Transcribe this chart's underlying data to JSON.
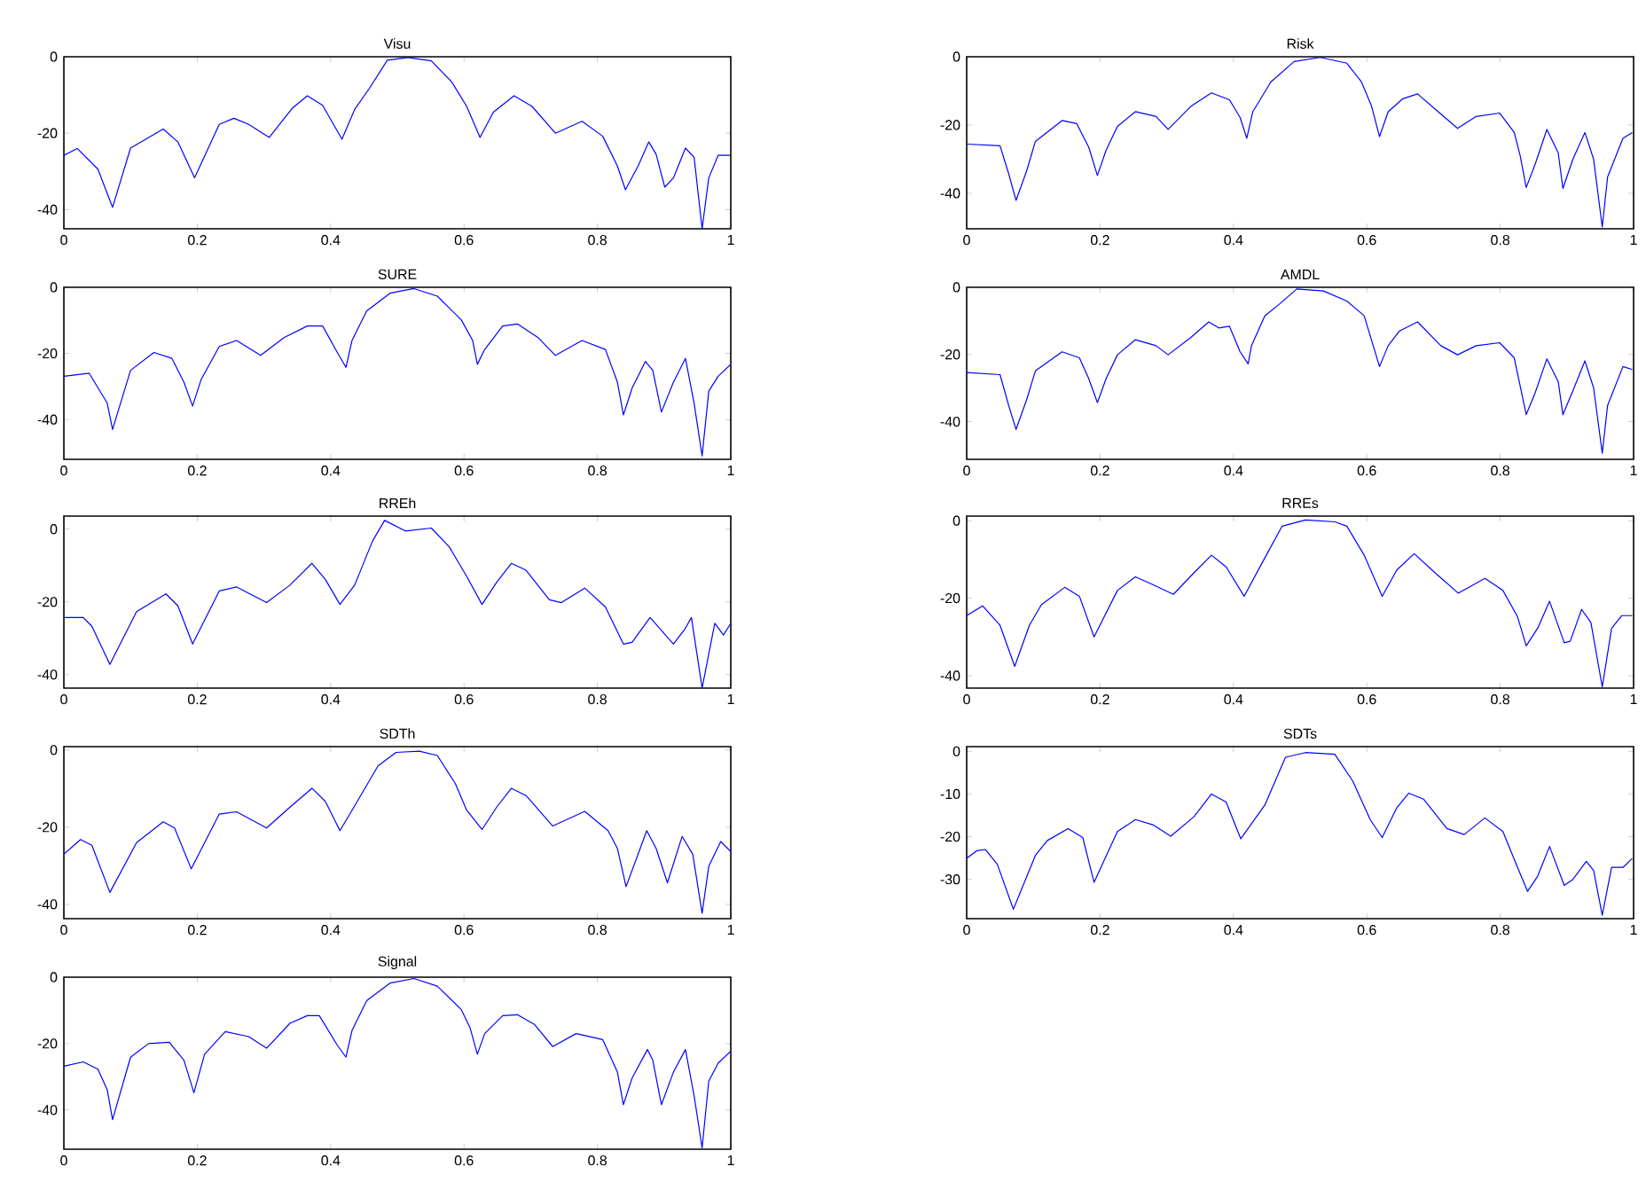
{
  "chart_data": [
    {
      "type": "line",
      "title": "Visu",
      "color": "#0000ff",
      "xlim": [
        0,
        1
      ],
      "xticks": [
        0,
        0.2,
        0.4,
        0.6,
        0.8,
        1
      ],
      "ylim": [
        -45,
        0
      ],
      "yticks": [
        -40,
        -20,
        0
      ],
      "x": [
        0,
        0.02,
        0.051,
        0.073,
        0.1,
        0.149,
        0.171,
        0.196,
        0.233,
        0.255,
        0.277,
        0.308,
        0.343,
        0.365,
        0.388,
        0.417,
        0.436,
        0.458,
        0.485,
        0.516,
        0.551,
        0.582,
        0.604,
        0.624,
        0.644,
        0.675,
        0.702,
        0.737,
        0.777,
        0.808,
        0.83,
        0.842,
        0.861,
        0.877,
        0.888,
        0.901,
        0.914,
        0.932,
        0.945,
        0.957,
        0.967,
        0.981,
        1
      ],
      "values": [
        -25.8,
        -24,
        -29.4,
        -39.4,
        -23.9,
        -18.9,
        -22.3,
        -31.7,
        -17.7,
        -16.1,
        -17.7,
        -21.1,
        -13.4,
        -10.2,
        -12.7,
        -21.6,
        -13.8,
        -8.3,
        -0.9,
        -0.2,
        -1.1,
        -6.7,
        -13,
        -21.1,
        -14.5,
        -10.2,
        -13,
        -20,
        -16.9,
        -20.8,
        -28.6,
        -34.8,
        -28.6,
        -22.3,
        -25.5,
        -34.1,
        -31.7,
        -23.9,
        -26.3,
        -45,
        -31.7,
        -25.8,
        -25.8
      ]
    },
    {
      "type": "line",
      "title": "Risk",
      "color": "#0000ff",
      "xlim": [
        0,
        1
      ],
      "xticks": [
        0,
        0.2,
        0.4,
        0.6,
        0.8,
        1
      ],
      "ylim": [
        -50.4,
        0
      ],
      "yticks": [
        -40,
        -20,
        0
      ],
      "x": [
        0,
        0.05,
        0.063,
        0.074,
        0.09,
        0.103,
        0.143,
        0.165,
        0.183,
        0.196,
        0.209,
        0.226,
        0.253,
        0.284,
        0.302,
        0.337,
        0.367,
        0.394,
        0.41,
        0.42,
        0.429,
        0.456,
        0.491,
        0.53,
        0.57,
        0.592,
        0.607,
        0.619,
        0.632,
        0.654,
        0.676,
        0.707,
        0.736,
        0.764,
        0.799,
        0.821,
        0.83,
        0.839,
        0.852,
        0.87,
        0.887,
        0.894,
        0.909,
        0.927,
        0.94,
        0.953,
        0.961,
        0.984,
        0.998
      ],
      "values": [
        -25.6,
        -26.1,
        -34.3,
        -42.1,
        -33.4,
        -24.8,
        -18.7,
        -19.6,
        -26.5,
        -34.8,
        -27.4,
        -20.4,
        -16.1,
        -17.5,
        -21.3,
        -14.4,
        -10.6,
        -12.6,
        -17.8,
        -23.9,
        -16.1,
        -7.4,
        -1.4,
        -0.2,
        -1.9,
        -7.4,
        -14.4,
        -23.4,
        -16.1,
        -12.3,
        -10.9,
        -16.1,
        -21,
        -17.5,
        -16.5,
        -22.2,
        -29.1,
        -38.3,
        -31.7,
        -21.3,
        -28.2,
        -38.6,
        -30,
        -22.2,
        -30,
        -49.9,
        -35.2,
        -23.9,
        -22.2
      ]
    },
    {
      "type": "line",
      "title": "SURE",
      "color": "#0000ff",
      "xlim": [
        0,
        1
      ],
      "xticks": [
        0,
        0.2,
        0.4,
        0.6,
        0.8,
        1
      ],
      "ylim": [
        -52,
        0
      ],
      "yticks": [
        -40,
        -20,
        0
      ],
      "x": [
        0,
        0.038,
        0.065,
        0.073,
        0.1,
        0.135,
        0.162,
        0.18,
        0.193,
        0.206,
        0.233,
        0.259,
        0.295,
        0.33,
        0.365,
        0.388,
        0.41,
        0.423,
        0.432,
        0.454,
        0.489,
        0.525,
        0.56,
        0.596,
        0.613,
        0.62,
        0.631,
        0.658,
        0.68,
        0.711,
        0.737,
        0.777,
        0.812,
        0.83,
        0.839,
        0.852,
        0.872,
        0.883,
        0.896,
        0.914,
        0.932,
        0.945,
        0.957,
        0.967,
        0.981,
        1
      ],
      "values": [
        -26.9,
        -26,
        -35,
        -43,
        -25.1,
        -19.7,
        -21.5,
        -28.7,
        -35.9,
        -27.8,
        -17.9,
        -16.1,
        -20.6,
        -15.2,
        -11.7,
        -11.7,
        -19.7,
        -24.2,
        -16.1,
        -7.2,
        -1.8,
        -0.4,
        -2.7,
        -9.9,
        -16.1,
        -23.3,
        -18.8,
        -11.7,
        -11.1,
        -15.2,
        -20.6,
        -16.1,
        -18.8,
        -28.7,
        -38.6,
        -30.5,
        -22.4,
        -25.1,
        -37.7,
        -28.7,
        -21.5,
        -35,
        -51,
        -31.4,
        -26.9,
        -23.3
      ]
    },
    {
      "type": "line",
      "title": "AMDL",
      "color": "#0000ff",
      "xlim": [
        0,
        1
      ],
      "xticks": [
        0,
        0.2,
        0.4,
        0.6,
        0.8,
        1
      ],
      "ylim": [
        -51.2,
        0
      ],
      "yticks": [
        -40,
        -20,
        0
      ],
      "x": [
        0,
        0.05,
        0.063,
        0.074,
        0.09,
        0.103,
        0.143,
        0.169,
        0.183,
        0.196,
        0.209,
        0.226,
        0.253,
        0.284,
        0.302,
        0.337,
        0.363,
        0.378,
        0.394,
        0.41,
        0.422,
        0.427,
        0.447,
        0.469,
        0.495,
        0.535,
        0.57,
        0.596,
        0.619,
        0.632,
        0.649,
        0.676,
        0.711,
        0.736,
        0.764,
        0.799,
        0.821,
        0.839,
        0.852,
        0.87,
        0.887,
        0.894,
        0.909,
        0.927,
        0.94,
        0.953,
        0.961,
        0.984,
        0.998
      ],
      "values": [
        -25.4,
        -26,
        -35.2,
        -42.3,
        -33.4,
        -24.9,
        -19.2,
        -21,
        -27.2,
        -34.3,
        -27.2,
        -20.1,
        -15.6,
        -17.4,
        -20.1,
        -14.8,
        -10.3,
        -12.1,
        -11.6,
        -19.2,
        -22.8,
        -17.4,
        -8.5,
        -5,
        -0.5,
        -1.1,
        -4.1,
        -8.5,
        -23.6,
        -17.4,
        -13,
        -10.3,
        -17.4,
        -20.1,
        -17.4,
        -16.5,
        -21,
        -37.9,
        -31.6,
        -21.3,
        -28.1,
        -37.9,
        -30.8,
        -21.9,
        -29.9,
        -49.4,
        -35.2,
        -23.6,
        -24.5
      ]
    },
    {
      "type": "line",
      "title": "RREh",
      "color": "#0000ff",
      "xlim": [
        0,
        1
      ],
      "xticks": [
        0,
        0.2,
        0.4,
        0.6,
        0.8,
        1
      ],
      "ylim": [
        -43.7,
        3.6
      ],
      "yticks": [
        -40,
        -20,
        0
      ],
      "x": [
        0,
        0.029,
        0.042,
        0.069,
        0.109,
        0.153,
        0.171,
        0.193,
        0.233,
        0.259,
        0.304,
        0.339,
        0.372,
        0.392,
        0.414,
        0.436,
        0.463,
        0.481,
        0.512,
        0.551,
        0.578,
        0.604,
        0.627,
        0.649,
        0.671,
        0.693,
        0.728,
        0.746,
        0.781,
        0.812,
        0.839,
        0.852,
        0.879,
        0.914,
        0.931,
        0.941,
        0.957,
        0.976,
        0.989,
        1
      ],
      "values": [
        -24.3,
        -24.3,
        -26.7,
        -37.2,
        -22.7,
        -17.8,
        -21.1,
        -31.6,
        -17,
        -15.9,
        -20.2,
        -15.4,
        -9.4,
        -13.8,
        -20.7,
        -15.4,
        -3.2,
        2.4,
        -0.5,
        0.3,
        -4.9,
        -13,
        -20.7,
        -14.6,
        -9.4,
        -11.3,
        -19.4,
        -20.2,
        -16.2,
        -21.4,
        -31.6,
        -31.1,
        -24.3,
        -31.6,
        -27.5,
        -24.3,
        -43.7,
        -25.9,
        -29.1,
        -25.9
      ]
    },
    {
      "type": "line",
      "title": "RREs",
      "color": "#0000ff",
      "xlim": [
        0,
        1
      ],
      "xticks": [
        0,
        0.2,
        0.4,
        0.6,
        0.8,
        1
      ],
      "ylim": [
        -43.2,
        1.2
      ],
      "yticks": [
        -40,
        -20,
        0
      ],
      "x": [
        0,
        0.024,
        0.05,
        0.072,
        0.094,
        0.112,
        0.147,
        0.169,
        0.191,
        0.226,
        0.253,
        0.279,
        0.31,
        0.341,
        0.367,
        0.389,
        0.416,
        0.442,
        0.473,
        0.508,
        0.552,
        0.57,
        0.596,
        0.623,
        0.645,
        0.671,
        0.702,
        0.737,
        0.777,
        0.804,
        0.826,
        0.839,
        0.856,
        0.874,
        0.896,
        0.905,
        0.922,
        0.936,
        0.953,
        0.967,
        0.982,
        0.998
      ],
      "values": [
        -24.5,
        -22,
        -27,
        -37.6,
        -27,
        -21.7,
        -17.2,
        -19.5,
        -30,
        -18,
        -14.5,
        -16.5,
        -19,
        -13.4,
        -8.9,
        -11.9,
        -19.5,
        -11.2,
        -1.4,
        0.2,
        -0.3,
        -1.4,
        -8.9,
        -19.5,
        -12.7,
        -8.5,
        -13.4,
        -18.7,
        -14.9,
        -18,
        -24.8,
        -32.3,
        -27.8,
        -20.8,
        -31.5,
        -31.1,
        -22.9,
        -26.3,
        -42.9,
        -27.8,
        -24.5,
        -24.5
      ]
    },
    {
      "type": "line",
      "title": "SDTh",
      "color": "#0000ff",
      "xlim": [
        0,
        1
      ],
      "xticks": [
        0,
        0.2,
        0.4,
        0.6,
        0.8,
        1
      ],
      "ylim": [
        -43.7,
        0.9
      ],
      "yticks": [
        -40,
        -20,
        0
      ],
      "x": [
        0,
        0.025,
        0.042,
        0.069,
        0.109,
        0.149,
        0.166,
        0.191,
        0.233,
        0.259,
        0.304,
        0.339,
        0.372,
        0.392,
        0.414,
        0.445,
        0.471,
        0.498,
        0.533,
        0.56,
        0.587,
        0.604,
        0.627,
        0.649,
        0.671,
        0.693,
        0.733,
        0.781,
        0.816,
        0.83,
        0.843,
        0.861,
        0.874,
        0.888,
        0.905,
        0.927,
        0.943,
        0.957,
        0.967,
        0.985,
        1
      ],
      "values": [
        -27,
        -23.2,
        -24.7,
        -36.9,
        -24,
        -18.6,
        -20.2,
        -30.8,
        -16.6,
        -16,
        -20.2,
        -14.8,
        -9.9,
        -13.3,
        -20.9,
        -11.8,
        -4.1,
        -0.6,
        -0.3,
        -1.4,
        -8.7,
        -15.6,
        -20.6,
        -14.8,
        -9.9,
        -11.8,
        -19.7,
        -15.9,
        -20.9,
        -25.5,
        -35.4,
        -27,
        -20.9,
        -25.5,
        -34.4,
        -22.4,
        -27,
        -42.3,
        -30.1,
        -23.7,
        -26.3
      ]
    },
    {
      "type": "line",
      "title": "SDTs",
      "color": "#0000ff",
      "xlim": [
        0,
        1
      ],
      "xticks": [
        0,
        0.2,
        0.4,
        0.6,
        0.8,
        1
      ],
      "ylim": [
        -39.2,
        1.1
      ],
      "yticks": [
        -30,
        -20,
        -10,
        0
      ],
      "x": [
        0,
        0.015,
        0.028,
        0.046,
        0.07,
        0.103,
        0.121,
        0.152,
        0.174,
        0.191,
        0.226,
        0.253,
        0.279,
        0.306,
        0.341,
        0.367,
        0.389,
        0.411,
        0.447,
        0.478,
        0.508,
        0.552,
        0.579,
        0.605,
        0.623,
        0.645,
        0.663,
        0.685,
        0.72,
        0.746,
        0.777,
        0.804,
        0.826,
        0.841,
        0.856,
        0.874,
        0.896,
        0.909,
        0.929,
        0.94,
        0.953,
        0.967,
        0.984,
        0.998
      ],
      "values": [
        -25.1,
        -23.3,
        -23,
        -26.5,
        -37,
        -24.4,
        -20.9,
        -18.1,
        -20.2,
        -30.7,
        -18.8,
        -16,
        -17.2,
        -19.9,
        -15.3,
        -10,
        -11.9,
        -20.5,
        -12.6,
        -1.4,
        -0.3,
        -0.7,
        -7,
        -16,
        -20.2,
        -13.2,
        -9.8,
        -11.2,
        -18.1,
        -19.5,
        -15.6,
        -18.8,
        -27.2,
        -32.8,
        -29.3,
        -22.3,
        -31.4,
        -30,
        -25.8,
        -27.9,
        -38.4,
        -27.2,
        -27.2,
        -25.1
      ]
    },
    {
      "type": "line",
      "title": "Signal",
      "color": "#0000ff",
      "xlim": [
        0,
        1
      ],
      "xticks": [
        0,
        0.2,
        0.4,
        0.6,
        0.8,
        1
      ],
      "ylim": [
        -51.8,
        0
      ],
      "yticks": [
        -40,
        -20,
        0
      ],
      "x": [
        0,
        0.029,
        0.051,
        0.065,
        0.073,
        0.1,
        0.127,
        0.158,
        0.18,
        0.195,
        0.211,
        0.242,
        0.277,
        0.304,
        0.339,
        0.365,
        0.383,
        0.41,
        0.423,
        0.432,
        0.454,
        0.489,
        0.525,
        0.56,
        0.596,
        0.609,
        0.62,
        0.631,
        0.658,
        0.68,
        0.706,
        0.733,
        0.768,
        0.808,
        0.83,
        0.839,
        0.852,
        0.875,
        0.883,
        0.896,
        0.914,
        0.932,
        0.945,
        0.957,
        0.967,
        0.981,
        1
      ],
      "values": [
        -26.8,
        -25.5,
        -27.7,
        -33.9,
        -42.9,
        -24.1,
        -20,
        -19.6,
        -25,
        -34.8,
        -23.2,
        -16.4,
        -17.9,
        -21.4,
        -13.9,
        -11.6,
        -11.6,
        -20.5,
        -24.1,
        -16.1,
        -7.1,
        -1.8,
        -0.4,
        -2.7,
        -9.8,
        -15.2,
        -23.2,
        -17,
        -11.6,
        -11.3,
        -14.3,
        -20.9,
        -17,
        -18.8,
        -28.6,
        -38.4,
        -30.4,
        -21.8,
        -25,
        -38.4,
        -28.6,
        -21.8,
        -35.7,
        -51.4,
        -31.3,
        -25.9,
        -22.3
      ]
    }
  ]
}
